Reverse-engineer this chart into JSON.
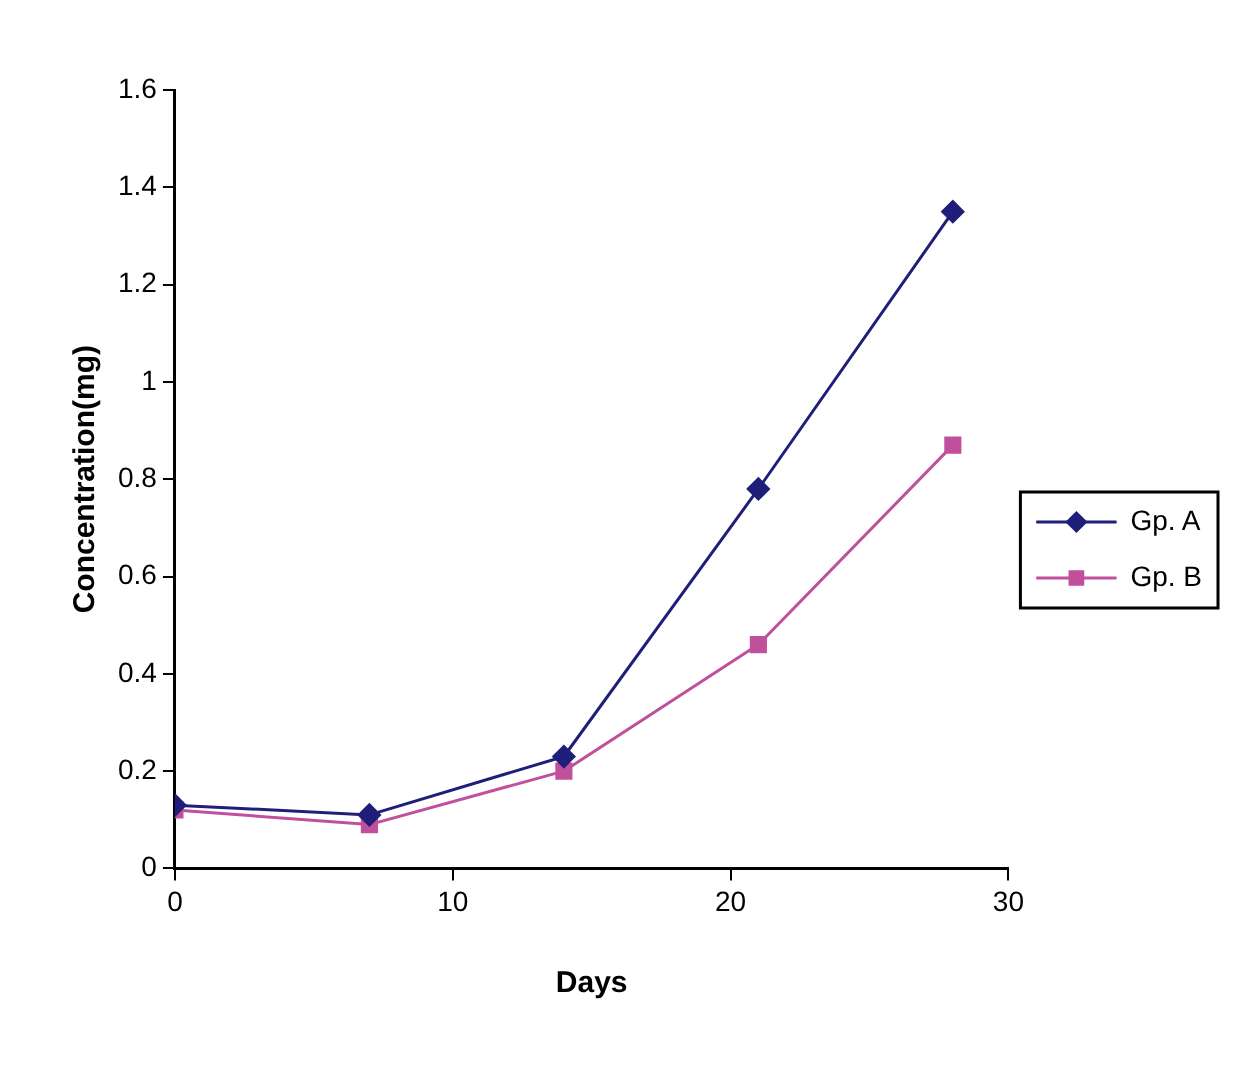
{
  "chart_data": {
    "type": "line",
    "xlabel": "Days",
    "ylabel": "Concentration(mg)",
    "x": [
      0,
      7,
      14,
      21,
      28
    ],
    "series": [
      {
        "name": "Gp. A",
        "color": "#1f1f7a",
        "marker": "diamond",
        "values": [
          0.13,
          0.11,
          0.23,
          0.78,
          1.35
        ]
      },
      {
        "name": "Gp. B",
        "color": "#c0509c",
        "marker": "square",
        "values": [
          0.12,
          0.09,
          0.2,
          0.46,
          0.87
        ]
      }
    ],
    "xlim": [
      0,
      30
    ],
    "xticks": [
      0,
      10,
      20,
      30
    ],
    "ylim": [
      0,
      1.6
    ],
    "yticks": [
      0,
      0.2,
      0.4,
      0.6,
      0.8,
      1,
      1.2,
      1.4,
      1.6
    ],
    "grid": false,
    "legend": "right",
    "line_style": "solid"
  }
}
